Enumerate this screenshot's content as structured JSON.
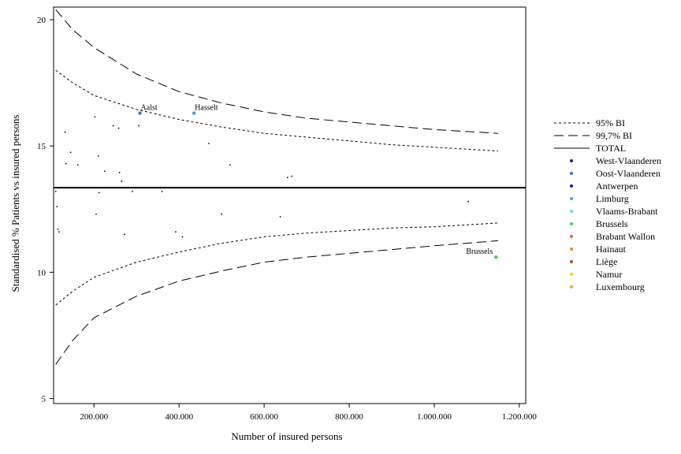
{
  "chart_data": {
    "type": "scatter",
    "xlabel": "Number of insured persons",
    "ylabel": "Standardised % Patients vs insured persons",
    "xlim": [
      105000,
      1215000
    ],
    "ylim": [
      4.8,
      20.5
    ],
    "xticks": [
      200000,
      400000,
      600000,
      800000,
      1000000,
      1200000
    ],
    "xtick_labels": [
      "200.000",
      "400.000",
      "600.000",
      "800.000",
      "1.000.000",
      "1.200.000"
    ],
    "yticks": [
      5,
      10,
      15,
      20
    ],
    "ytick_labels": [
      "5",
      "10",
      "15",
      "20"
    ],
    "grid": false,
    "legend_position": "right",
    "total": 13.35,
    "limit_lines": [
      {
        "name": "95% BI",
        "style": "dotted",
        "upper": [
          [
            110000,
            18.0
          ],
          [
            150000,
            17.5
          ],
          [
            200000,
            17.0
          ],
          [
            300000,
            16.45
          ],
          [
            400000,
            16.05
          ],
          [
            500000,
            15.75
          ],
          [
            600000,
            15.5
          ],
          [
            700000,
            15.35
          ],
          [
            800000,
            15.2
          ],
          [
            900000,
            15.05
          ],
          [
            1000000,
            14.95
          ],
          [
            1150000,
            14.8
          ]
        ],
        "lower": [
          [
            110000,
            8.7
          ],
          [
            150000,
            9.25
          ],
          [
            200000,
            9.8
          ],
          [
            300000,
            10.4
          ],
          [
            400000,
            10.8
          ],
          [
            500000,
            11.15
          ],
          [
            600000,
            11.4
          ],
          [
            700000,
            11.55
          ],
          [
            800000,
            11.65
          ],
          [
            900000,
            11.75
          ],
          [
            1000000,
            11.8
          ],
          [
            1150000,
            11.95
          ]
        ]
      },
      {
        "name": "99,7% BI",
        "style": "dashed",
        "upper": [
          [
            110000,
            20.4
          ],
          [
            150000,
            19.6
          ],
          [
            200000,
            18.9
          ],
          [
            300000,
            17.85
          ],
          [
            400000,
            17.15
          ],
          [
            500000,
            16.7
          ],
          [
            600000,
            16.35
          ],
          [
            700000,
            16.1
          ],
          [
            800000,
            15.95
          ],
          [
            900000,
            15.8
          ],
          [
            1000000,
            15.65
          ],
          [
            1150000,
            15.5
          ]
        ],
        "lower": [
          [
            110000,
            6.35
          ],
          [
            150000,
            7.3
          ],
          [
            200000,
            8.2
          ],
          [
            300000,
            9.05
          ],
          [
            400000,
            9.65
          ],
          [
            500000,
            10.05
          ],
          [
            600000,
            10.4
          ],
          [
            700000,
            10.6
          ],
          [
            800000,
            10.75
          ],
          [
            900000,
            10.9
          ],
          [
            1000000,
            11.05
          ],
          [
            1150000,
            11.25
          ]
        ]
      }
    ],
    "legend": {
      "lines": [
        {
          "label": "95% BI",
          "style": "dotted"
        },
        {
          "label": "99,7% BI",
          "style": "dashed"
        },
        {
          "label": "TOTAL",
          "style": "solid"
        }
      ],
      "provinces": [
        {
          "label": "West-Vlaanderen",
          "color": "#1a237e"
        },
        {
          "label": "Oost-Vlaanderen",
          "color": "#3f6fd4"
        },
        {
          "label": "Antwerpen",
          "color": "#1515d0"
        },
        {
          "label": "Limburg",
          "color": "#3d9ee8"
        },
        {
          "label": "Vlaams-Brabant",
          "color": "#6fd6e0"
        },
        {
          "label": "Brussels",
          "color": "#3ccf4e"
        },
        {
          "label": "Brabant Wallon",
          "color": "#c8704a"
        },
        {
          "label": "Hainaut",
          "color": "#f08a1c"
        },
        {
          "label": "Liège",
          "color": "#b24e2e"
        },
        {
          "label": "Namur",
          "color": "#f2d21b"
        },
        {
          "label": "Luxembourg",
          "color": "#e6a83a"
        }
      ]
    },
    "points": [
      {
        "x": 110000,
        "y": 13.2
      },
      {
        "x": 113000,
        "y": 12.6
      },
      {
        "x": 115000,
        "y": 11.7
      },
      {
        "x": 118000,
        "y": 11.6
      },
      {
        "x": 132000,
        "y": 15.55
      },
      {
        "x": 134000,
        "y": 14.3
      },
      {
        "x": 145000,
        "y": 14.75
      },
      {
        "x": 162000,
        "y": 14.25
      },
      {
        "x": 202000,
        "y": 16.15
      },
      {
        "x": 205000,
        "y": 12.3
      },
      {
        "x": 210000,
        "y": 14.6
      },
      {
        "x": 212000,
        "y": 13.15
      },
      {
        "x": 225000,
        "y": 14.0
      },
      {
        "x": 245000,
        "y": 15.8
      },
      {
        "x": 258000,
        "y": 15.7
      },
      {
        "x": 260000,
        "y": 13.95
      },
      {
        "x": 265000,
        "y": 13.6
      },
      {
        "x": 272000,
        "y": 11.5
      },
      {
        "x": 290000,
        "y": 13.2
      },
      {
        "x": 305000,
        "y": 15.8
      },
      {
        "x": 308000,
        "y": 16.3,
        "label": "Aalst",
        "province": "Oost-Vlaanderen"
      },
      {
        "x": 360000,
        "y": 13.2
      },
      {
        "x": 392000,
        "y": 11.6
      },
      {
        "x": 408000,
        "y": 11.4
      },
      {
        "x": 435000,
        "y": 16.3,
        "label": "Hasselt",
        "province": "Limburg"
      },
      {
        "x": 470000,
        "y": 15.1
      },
      {
        "x": 500000,
        "y": 12.3
      },
      {
        "x": 520000,
        "y": 14.25
      },
      {
        "x": 638000,
        "y": 12.2
      },
      {
        "x": 655000,
        "y": 13.75
      },
      {
        "x": 665000,
        "y": 13.8
      },
      {
        "x": 1080000,
        "y": 12.8
      },
      {
        "x": 1145000,
        "y": 10.6,
        "label": "Brussels",
        "province": "Brussels"
      }
    ]
  }
}
